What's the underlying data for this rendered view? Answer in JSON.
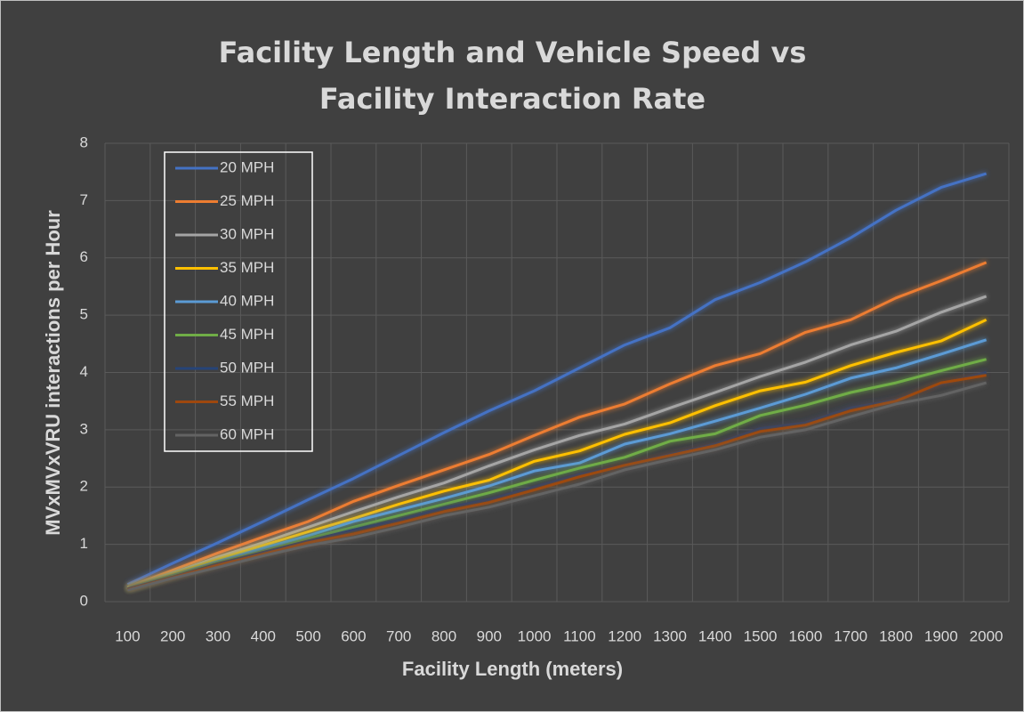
{
  "chart_data": {
    "type": "line",
    "title": "Facility Length and Vehicle Speed vs Facility Interaction Rate",
    "x_label": "Facility Length (meters)",
    "y_label": "MVxMVxVRU interactions per Hour",
    "categories": [
      100,
      200,
      300,
      400,
      500,
      600,
      700,
      800,
      900,
      1000,
      1100,
      1200,
      1300,
      1400,
      1500,
      1600,
      1700,
      1800,
      1900,
      2000
    ],
    "ylim": [
      0,
      8
    ],
    "yticks": [
      0,
      1,
      2,
      3,
      4,
      5,
      6,
      7,
      8
    ],
    "grid": true,
    "legend": "upper left",
    "series": [
      {
        "name": "20 MPH",
        "color": "#4472c4",
        "values": [
          0.3,
          0.67,
          1.03,
          1.4,
          1.78,
          2.15,
          2.55,
          2.95,
          3.33,
          3.68,
          4.08,
          4.48,
          4.78,
          5.27,
          5.57,
          5.93,
          6.35,
          6.83,
          7.23,
          7.47
        ]
      },
      {
        "name": "25 MPH",
        "color": "#ed7d31",
        "values": [
          0.25,
          0.55,
          0.85,
          1.13,
          1.4,
          1.75,
          2.03,
          2.3,
          2.57,
          2.9,
          3.22,
          3.45,
          3.8,
          4.12,
          4.33,
          4.7,
          4.92,
          5.3,
          5.6,
          5.92
        ]
      },
      {
        "name": "30 MPH",
        "color": "#a5a5a5",
        "values": [
          0.24,
          0.5,
          0.78,
          1.03,
          1.3,
          1.57,
          1.83,
          2.07,
          2.37,
          2.65,
          2.9,
          3.1,
          3.38,
          3.65,
          3.93,
          4.18,
          4.48,
          4.72,
          5.05,
          5.33
        ]
      },
      {
        "name": "35 MPH",
        "color": "#ffc000",
        "values": [
          0.24,
          0.48,
          0.74,
          0.98,
          1.22,
          1.45,
          1.7,
          1.93,
          2.12,
          2.45,
          2.63,
          2.92,
          3.12,
          3.42,
          3.68,
          3.83,
          4.12,
          4.35,
          4.55,
          4.92
        ]
      },
      {
        "name": "40 MPH",
        "color": "#5b9bd5",
        "values": [
          0.23,
          0.46,
          0.7,
          0.93,
          1.15,
          1.4,
          1.6,
          1.8,
          2.02,
          2.28,
          2.42,
          2.75,
          2.93,
          3.15,
          3.38,
          3.62,
          3.9,
          4.08,
          4.32,
          4.57
        ]
      },
      {
        "name": "45 MPH",
        "color": "#70ad47",
        "values": [
          0.22,
          0.45,
          0.68,
          0.88,
          1.1,
          1.3,
          1.5,
          1.7,
          1.9,
          2.12,
          2.33,
          2.52,
          2.8,
          2.93,
          3.25,
          3.43,
          3.65,
          3.82,
          4.03,
          4.23
        ]
      },
      {
        "name": "50 MPH",
        "color": "#264478",
        "values": [
          0.22,
          0.43,
          0.66,
          0.86,
          1.06,
          1.25,
          1.42,
          1.63,
          1.78,
          2.0,
          2.22,
          2.38,
          2.57,
          2.75,
          3.02,
          3.12,
          3.38,
          3.52,
          3.8,
          4.0
        ]
      },
      {
        "name": "55 MPH",
        "color": "#9e480e",
        "values": [
          0.21,
          0.42,
          0.64,
          0.83,
          1.03,
          1.18,
          1.37,
          1.57,
          1.73,
          1.95,
          2.18,
          2.38,
          2.55,
          2.72,
          2.97,
          3.08,
          3.33,
          3.5,
          3.82,
          3.95
        ]
      },
      {
        "name": "60 MPH",
        "color": "#636363",
        "values": [
          0.2,
          0.41,
          0.6,
          0.8,
          0.98,
          1.12,
          1.3,
          1.5,
          1.65,
          1.85,
          2.05,
          2.3,
          2.48,
          2.65,
          2.87,
          3.0,
          3.23,
          3.45,
          3.6,
          3.82
        ]
      }
    ]
  }
}
